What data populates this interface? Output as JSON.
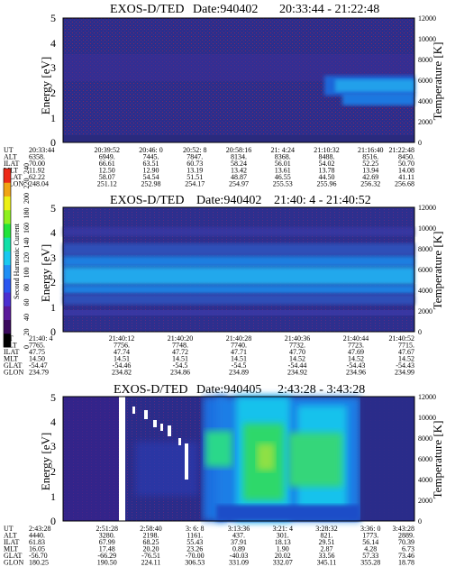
{
  "chart_data": [
    {
      "type": "heatmap",
      "title": "EXOS-D/TED",
      "date_label": "Date:940402",
      "time_range": "20:33:44 - 21:22:48",
      "ylabel": "Energy [eV]",
      "y2label": "Temperature [K]",
      "ylim": [
        0,
        5
      ],
      "y2lim": [
        0,
        12000
      ],
      "yticks": [
        "0",
        "1",
        "2",
        "3",
        "4",
        "5"
      ],
      "y2ticks": [
        "0",
        "2000",
        "4000",
        "6000",
        "8000",
        "10000",
        "12000"
      ],
      "ephemeris": {
        "row_labels": [
          "UT",
          "ALT",
          "ILAT",
          "MLT",
          "GLAT",
          "GLON"
        ],
        "columns": [
          [
            "20:33:44",
            "6358.",
            "70.00",
            "11.92",
            "62.22",
            "248.04"
          ],
          [
            "20:39:52",
            "6949.",
            "66.61",
            "12.50",
            "58.07",
            "251.12"
          ],
          [
            "20:46: 0",
            "7445.",
            "63.51",
            "12.90",
            "54.54",
            "252.98"
          ],
          [
            "20:52: 8",
            "7847.",
            "60.73",
            "13.19",
            "51.51",
            "254.17"
          ],
          [
            "20:58:16",
            "8134.",
            "58.24",
            "13.42",
            "48.87",
            "254.97"
          ],
          [
            "21: 4:24",
            "8368.",
            "56.01",
            "13.61",
            "46.55",
            "255.53"
          ],
          [
            "21:10:32",
            "8488.",
            "54.02",
            "13.78",
            "44.50",
            "255.96"
          ],
          [
            "21:16:40",
            "8516.",
            "52.25",
            "13.94",
            "42.69",
            "256.32"
          ],
          [
            "21:22:48",
            "8450.",
            "50.70",
            "14.08",
            "41.11",
            "256.68"
          ]
        ]
      }
    },
    {
      "type": "heatmap",
      "title": "EXOS-D/TED",
      "date_label": "Date:940402",
      "time_range": "21:40: 4 - 21:40:52",
      "ylabel": "Energy [eV]",
      "y2label": "Temperature [K]",
      "ylim": [
        0,
        5
      ],
      "y2lim": [
        0,
        12000
      ],
      "yticks": [
        "0",
        "1",
        "2",
        "3",
        "4",
        "5"
      ],
      "y2ticks": [
        "0",
        "2000",
        "4000",
        "6000",
        "8000",
        "10000",
        "12000"
      ],
      "colorbar": {
        "label": "Second Harmonic Current",
        "ticks": [
          "0",
          "20",
          "40",
          "60",
          "80",
          "100",
          "120",
          "140",
          "160",
          "180",
          "200",
          "220",
          "240"
        ],
        "colors": [
          "#000000",
          "#3a0a5c",
          "#5a1a9a",
          "#4b2fd0",
          "#2a56f0",
          "#1f8ff5",
          "#18c8f0",
          "#12e0a8",
          "#22e43a",
          "#8ef01e",
          "#ecf014",
          "#f0a414",
          "#ee2a18"
        ]
      },
      "ephemeris": {
        "row_labels": [
          "UT",
          "ALT",
          "ILAT",
          "MLT",
          "GLAT",
          "GLON"
        ],
        "columns": [
          [
            "21:40: 4",
            "7765.",
            "47.75",
            "14.50",
            "-54.47",
            "234.79"
          ],
          [
            "21:40:12",
            "7756.",
            "47.74",
            "14.51",
            "-54.46",
            "234.82"
          ],
          [
            "21:40:20",
            "7748.",
            "47.72",
            "14.51",
            "-54.5",
            "234.86"
          ],
          [
            "21:40:28",
            "7740.",
            "47.71",
            "14.51",
            "-54.5",
            "234.89"
          ],
          [
            "21:40:36",
            "7732.",
            "47.70",
            "14.52",
            "-54.44",
            "234.92"
          ],
          [
            "21:40:44",
            "7723.",
            "47.69",
            "14.52",
            "-54.43",
            "234.96"
          ],
          [
            "21:40:52",
            "7715.",
            "47.67",
            "14.52",
            "-54.43",
            "234.99"
          ]
        ]
      }
    },
    {
      "type": "heatmap",
      "title": "EXOS-D/TED",
      "date_label": "Date:940405",
      "time_range": "2:43:28 - 3:43:28",
      "ylabel": "Energy [eV]",
      "y2label": "Temperature [K]",
      "ylim": [
        0,
        5
      ],
      "y2lim": [
        0,
        12000
      ],
      "yticks": [
        "0",
        "1",
        "2",
        "3",
        "4",
        "5"
      ],
      "y2ticks": [
        "0",
        "2000",
        "4000",
        "6000",
        "8000",
        "10000",
        "12000"
      ],
      "ephemeris": {
        "row_labels": [
          "UT",
          "ALT",
          "ILAT",
          "MLT",
          "GLAT",
          "GLON"
        ],
        "columns": [
          [
            "2:43:28",
            "4440.",
            "61.83",
            "16.05",
            "-56.70",
            "180.25"
          ],
          [
            "2:51:28",
            "3280.",
            "67.99",
            "17.48",
            "-66.29",
            "190.50"
          ],
          [
            "2:58:40",
            "2198.",
            "68.25",
            "20.20",
            "-76.51",
            "224.11"
          ],
          [
            "3: 6: 8",
            "1161.",
            "55.43",
            "23.26",
            "-70.00",
            "306.53"
          ],
          [
            "3:13:36",
            "437.",
            "37.91",
            "0.89",
            "-40.03",
            "331.09"
          ],
          [
            "3:21: 4",
            "301.",
            "18.13",
            "1.90",
            "20.02",
            "332.07"
          ],
          [
            "3:28:32",
            "821.",
            "29.51",
            "2.87",
            "33.56",
            "345.11"
          ],
          [
            "3:36: 0",
            "1773.",
            "56.14",
            "4.28",
            "57.33",
            "355.28"
          ],
          [
            "3:43:28",
            "2889.",
            "70.39",
            "6.73",
            "73.46",
            "18.78"
          ]
        ]
      }
    }
  ]
}
